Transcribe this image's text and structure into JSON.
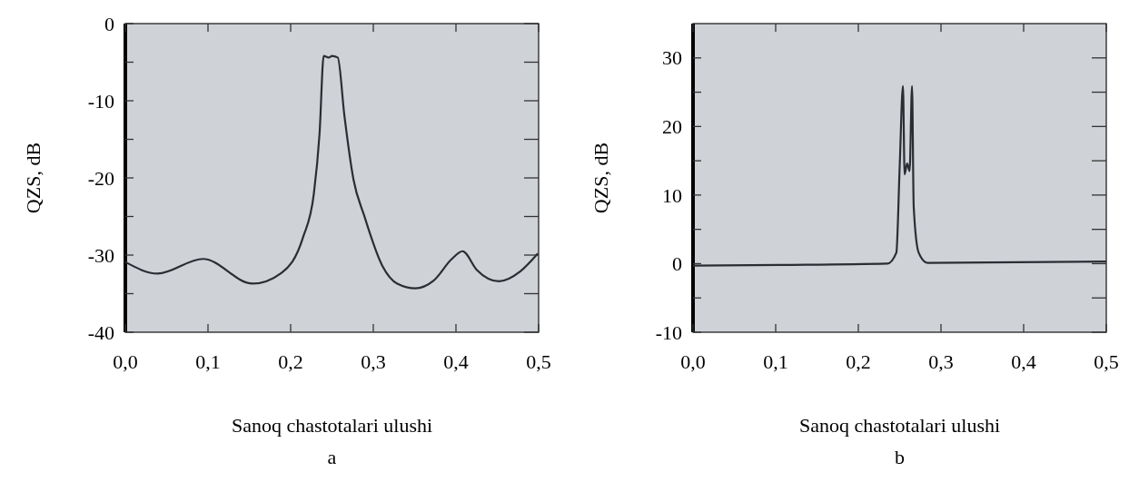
{
  "chart_data": [
    {
      "type": "line",
      "xlabel": "Sanoq chastotalari ulushi",
      "ylabel": "QZS, dB",
      "annotations": [
        "a"
      ],
      "xlim": [
        0,
        0.5
      ],
      "ylim": [
        -40,
        0
      ],
      "xticks": [
        {
          "value": 0,
          "label": "0,0"
        },
        {
          "value": 0.1,
          "label": "0,1"
        },
        {
          "value": 0.2,
          "label": "0,2"
        },
        {
          "value": 0.3,
          "label": "0,3"
        },
        {
          "value": 0.4,
          "label": "0,4"
        },
        {
          "value": 0.5,
          "label": "0,5"
        }
      ],
      "yticks": [
        -40,
        {
          "value": -35,
          "label": null
        },
        -30,
        {
          "value": -25,
          "label": null
        },
        -20,
        {
          "value": -15,
          "label": null
        },
        -10,
        {
          "value": -5,
          "label": null
        },
        0
      ],
      "series": [
        {
          "color": "#2a2e33",
          "x": [
            0,
            0.039,
            0.094,
            0.154,
            0.189,
            0.215,
            0.228,
            0.235,
            0.24,
            0.246,
            0.25,
            0.257,
            0.265,
            0.276,
            0.289,
            0.311,
            0.329,
            0.351,
            0.373,
            0.395,
            0.408,
            0.425,
            0.452,
            0.478,
            0.499
          ],
          "values": [
            -30.9,
            -32.4,
            -30.5,
            -33.7,
            -32.3,
            -27.7,
            -22.1,
            -14.2,
            -4.2,
            -4.4,
            -4.2,
            -4.4,
            -11.9,
            -20.2,
            -24.9,
            -31.4,
            -33.7,
            -34.3,
            -33.3,
            -30.5,
            -29.5,
            -31.9,
            -33.4,
            -32.1,
            -29.8
          ]
        }
      ]
    },
    {
      "type": "line",
      "xlabel": "Sanoq chastotalari ulushi",
      "ylabel": "QZS, dB",
      "annotations": [
        "b"
      ],
      "xlim": [
        0,
        0.5
      ],
      "ylim": [
        -10,
        35
      ],
      "xticks": [
        {
          "value": 0,
          "label": "0,0"
        },
        {
          "value": 0.1,
          "label": "0,1"
        },
        {
          "value": 0.2,
          "label": "0,2"
        },
        {
          "value": 0.3,
          "label": "0,3"
        },
        {
          "value": 0.4,
          "label": "0,4"
        },
        {
          "value": 0.5,
          "label": "0,5"
        }
      ],
      "yticks": [
        -10,
        {
          "value": -5,
          "label": null
        },
        0,
        {
          "value": 5,
          "label": null
        },
        10,
        {
          "value": 15,
          "label": null
        },
        20,
        {
          "value": 25,
          "label": null
        },
        30
      ],
      "series": [
        {
          "color": "#2a2e33",
          "x": [
            0,
            0.106,
            0.235,
            0.246,
            0.25,
            0.254,
            0.256,
            0.259,
            0.262,
            0.265,
            0.267,
            0.273,
            0.284,
            0.5
          ],
          "values": [
            -0.3,
            -0.2,
            0,
            1.6,
            14,
            25.9,
            13,
            14.6,
            13.5,
            25.9,
            8.3,
            1.6,
            0.1,
            0.3
          ]
        }
      ]
    }
  ]
}
